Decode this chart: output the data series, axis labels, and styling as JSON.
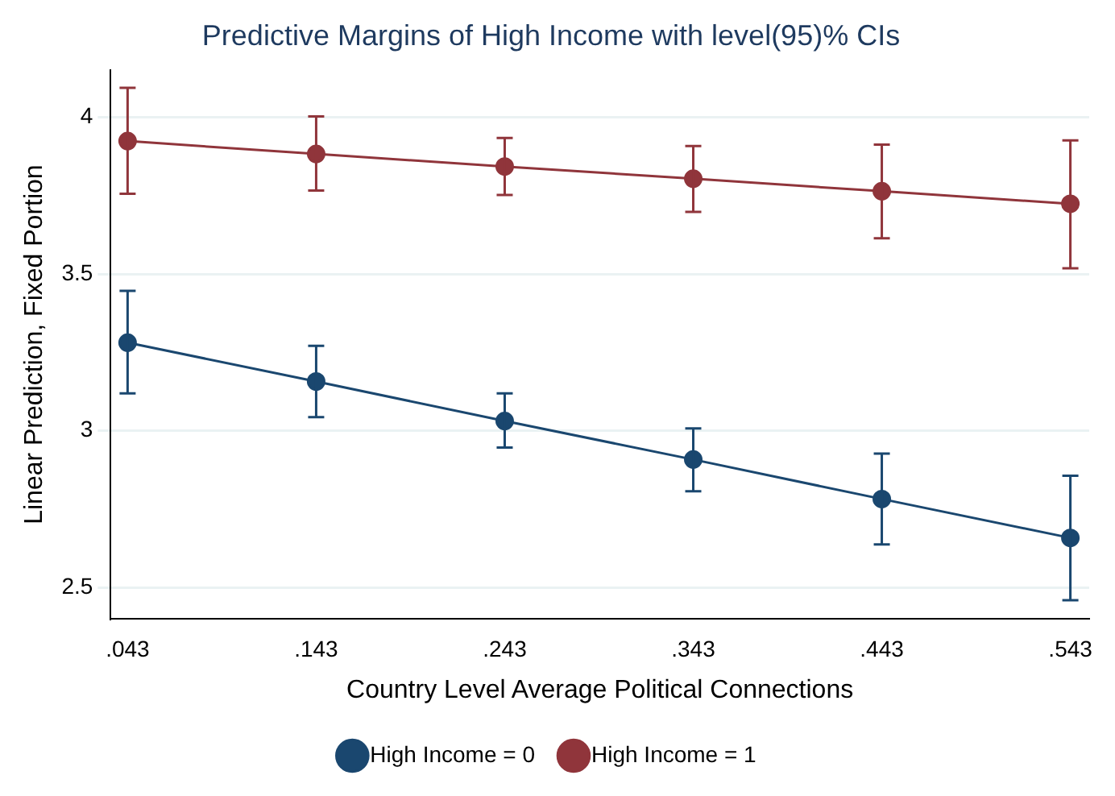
{
  "chart_data": {
    "type": "line",
    "title": "Predictive Margins of High Income with level(95)% CIs",
    "xlabel": "Country Level Average Political Connections",
    "ylabel": "Linear Prediction, Fixed Portion",
    "x": [
      0.043,
      0.143,
      0.243,
      0.343,
      0.443,
      0.543
    ],
    "series": [
      {
        "name": "High Income = 0",
        "color": "#1a476f",
        "values": [
          3.281,
          3.157,
          3.031,
          2.908,
          2.782,
          2.658
        ],
        "errors": [
          [
            3.119,
            3.446
          ],
          [
            3.043,
            3.271
          ],
          [
            2.946,
            3.119
          ],
          [
            2.807,
            3.007
          ],
          [
            2.637,
            2.927
          ],
          [
            2.459,
            2.856
          ]
        ]
      },
      {
        "name": "High Income = 1",
        "color": "#90353b",
        "values": [
          3.924,
          3.883,
          3.843,
          3.804,
          3.764,
          3.724
        ],
        "errors": [
          [
            3.756,
            4.094
          ],
          [
            3.766,
            4.003
          ],
          [
            3.752,
            3.934
          ],
          [
            3.698,
            3.908
          ],
          [
            3.614,
            3.913
          ],
          [
            3.518,
            3.926
          ]
        ]
      }
    ],
    "xlim": [
      0.034,
      0.553
    ],
    "xticks": [
      {
        "value": 0.043,
        "label": ".043"
      },
      {
        "value": 0.143,
        "label": ".143"
      },
      {
        "value": 0.243,
        "label": ".243"
      },
      {
        "value": 0.343,
        "label": ".343"
      },
      {
        "value": 0.443,
        "label": ".443"
      },
      {
        "value": 0.543,
        "label": ".543"
      }
    ],
    "ylim": [
      2.4,
      4.15
    ],
    "yticks": [
      2.5,
      3,
      3.5,
      4
    ],
    "grid": "y",
    "legend": "bottom",
    "marker": "circle",
    "line_style": "solid"
  }
}
